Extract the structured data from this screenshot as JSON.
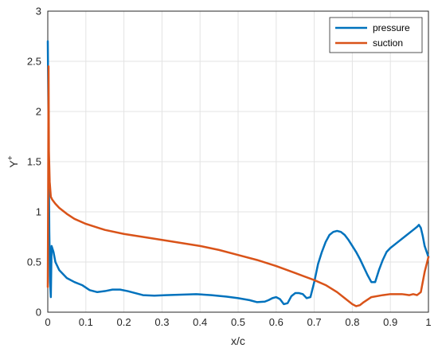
{
  "chart_data": {
    "type": "line",
    "xlabel": "x/c",
    "ylabel": {
      "base": "Y",
      "sup": "+"
    },
    "xlim": [
      0,
      1
    ],
    "ylim": [
      0,
      3
    ],
    "xticks": [
      "0",
      "0.1",
      "0.2",
      "0.3",
      "0.4",
      "0.5",
      "0.6",
      "0.7",
      "0.8",
      "0.9",
      "1"
    ],
    "yticks": [
      "0",
      "0.5",
      "1",
      "1.5",
      "2",
      "2.5",
      "3"
    ],
    "grid": true,
    "legend_position": "top-right",
    "series": [
      {
        "name": "pressure",
        "color": "#0072BD",
        "x": [
          0,
          0.002,
          0.004,
          0.006,
          0.008,
          0.01,
          0.015,
          0.02,
          0.03,
          0.05,
          0.07,
          0.09,
          0.11,
          0.13,
          0.15,
          0.17,
          0.19,
          0.21,
          0.23,
          0.25,
          0.28,
          0.31,
          0.35,
          0.39,
          0.43,
          0.47,
          0.5,
          0.53,
          0.55,
          0.57,
          0.58,
          0.59,
          0.6,
          0.61,
          0.62,
          0.63,
          0.64,
          0.65,
          0.66,
          0.67,
          0.68,
          0.69,
          0.7,
          0.71,
          0.72,
          0.73,
          0.74,
          0.75,
          0.76,
          0.77,
          0.78,
          0.79,
          0.8,
          0.81,
          0.82,
          0.83,
          0.84,
          0.85,
          0.86,
          0.87,
          0.88,
          0.89,
          0.9,
          0.92,
          0.94,
          0.96,
          0.97,
          0.975,
          0.98,
          0.985,
          0.99,
          1.0
        ],
        "values": [
          2.7,
          1.8,
          0.8,
          0.3,
          0.15,
          0.66,
          0.6,
          0.5,
          0.42,
          0.34,
          0.3,
          0.27,
          0.22,
          0.2,
          0.21,
          0.225,
          0.225,
          0.21,
          0.19,
          0.17,
          0.165,
          0.17,
          0.175,
          0.18,
          0.17,
          0.155,
          0.14,
          0.12,
          0.1,
          0.105,
          0.12,
          0.14,
          0.15,
          0.13,
          0.08,
          0.09,
          0.16,
          0.19,
          0.19,
          0.18,
          0.14,
          0.15,
          0.3,
          0.48,
          0.6,
          0.7,
          0.77,
          0.8,
          0.81,
          0.8,
          0.77,
          0.72,
          0.66,
          0.6,
          0.53,
          0.45,
          0.37,
          0.3,
          0.3,
          0.42,
          0.52,
          0.6,
          0.64,
          0.7,
          0.76,
          0.82,
          0.85,
          0.87,
          0.84,
          0.76,
          0.66,
          0.55
        ]
      },
      {
        "name": "suction",
        "color": "#D95319",
        "x": [
          0,
          0.001,
          0.002,
          0.003,
          0.005,
          0.008,
          0.012,
          0.02,
          0.03,
          0.05,
          0.07,
          0.1,
          0.15,
          0.2,
          0.3,
          0.4,
          0.45,
          0.5,
          0.55,
          0.6,
          0.65,
          0.7,
          0.73,
          0.76,
          0.78,
          0.8,
          0.81,
          0.82,
          0.83,
          0.85,
          0.88,
          0.9,
          0.93,
          0.95,
          0.96,
          0.97,
          0.98,
          0.99,
          1.0
        ],
        "values": [
          0.25,
          1.2,
          2.45,
          1.6,
          1.3,
          1.15,
          1.12,
          1.08,
          1.04,
          0.98,
          0.93,
          0.88,
          0.82,
          0.78,
          0.72,
          0.66,
          0.62,
          0.57,
          0.52,
          0.46,
          0.39,
          0.32,
          0.27,
          0.2,
          0.14,
          0.08,
          0.06,
          0.07,
          0.1,
          0.15,
          0.17,
          0.18,
          0.18,
          0.17,
          0.18,
          0.17,
          0.2,
          0.4,
          0.55
        ]
      }
    ]
  }
}
